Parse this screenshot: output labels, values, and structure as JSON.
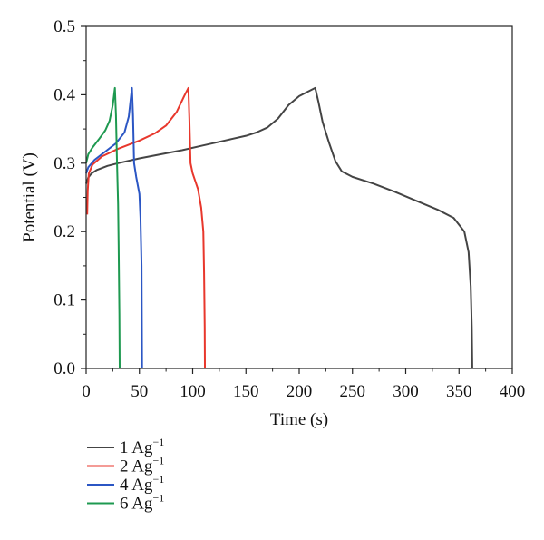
{
  "chart_data": {
    "type": "line",
    "xlabel": "Time (s)",
    "ylabel": "Potential (V)",
    "xlim": [
      0,
      400
    ],
    "ylim": [
      0,
      0.5
    ],
    "xticks": [
      0,
      50,
      100,
      150,
      200,
      250,
      300,
      350,
      400
    ],
    "yticks": [
      0.0,
      0.1,
      0.2,
      0.3,
      0.4,
      0.5
    ],
    "xtick_labels": [
      "0",
      "50",
      "100",
      "150",
      "200",
      "250",
      "300",
      "350",
      "400"
    ],
    "ytick_labels": [
      "0.0",
      "0.1",
      "0.2",
      "0.3",
      "0.4",
      "0.5"
    ],
    "legend_position": "below-left",
    "series": [
      {
        "name": "1 Ag",
        "name_superscript": "−1",
        "color": "#444444",
        "points": [
          [
            0,
            0.27
          ],
          [
            2,
            0.279
          ],
          [
            5,
            0.285
          ],
          [
            10,
            0.29
          ],
          [
            20,
            0.296
          ],
          [
            30,
            0.3
          ],
          [
            50,
            0.307
          ],
          [
            70,
            0.313
          ],
          [
            90,
            0.319
          ],
          [
            110,
            0.326
          ],
          [
            130,
            0.333
          ],
          [
            150,
            0.34
          ],
          [
            160,
            0.345
          ],
          [
            170,
            0.352
          ],
          [
            180,
            0.365
          ],
          [
            190,
            0.385
          ],
          [
            200,
            0.398
          ],
          [
            210,
            0.406
          ],
          [
            215,
            0.41
          ],
          [
            218,
            0.39
          ],
          [
            222,
            0.36
          ],
          [
            228,
            0.33
          ],
          [
            234,
            0.303
          ],
          [
            240,
            0.288
          ],
          [
            250,
            0.28
          ],
          [
            270,
            0.27
          ],
          [
            290,
            0.258
          ],
          [
            310,
            0.245
          ],
          [
            330,
            0.232
          ],
          [
            345,
            0.22
          ],
          [
            355,
            0.2
          ],
          [
            359,
            0.17
          ],
          [
            361,
            0.12
          ],
          [
            362,
            0.06
          ],
          [
            362.5,
            0.0
          ]
        ]
      },
      {
        "name": "2 Ag",
        "name_superscript": "−1",
        "color": "#e8372c",
        "points": [
          [
            1,
            0.225
          ],
          [
            1.5,
            0.26
          ],
          [
            2.5,
            0.285
          ],
          [
            6,
            0.298
          ],
          [
            15,
            0.31
          ],
          [
            30,
            0.321
          ],
          [
            50,
            0.333
          ],
          [
            65,
            0.344
          ],
          [
            75,
            0.355
          ],
          [
            85,
            0.375
          ],
          [
            92,
            0.398
          ],
          [
            96,
            0.41
          ],
          [
            97,
            0.36
          ],
          [
            98,
            0.3
          ],
          [
            100,
            0.285
          ],
          [
            105,
            0.262
          ],
          [
            108,
            0.235
          ],
          [
            110,
            0.2
          ],
          [
            110.7,
            0.14
          ],
          [
            111.3,
            0.06
          ],
          [
            111.5,
            0.0
          ]
        ]
      },
      {
        "name": "4 Ag",
        "name_superscript": "−1",
        "color": "#2b56c4",
        "points": [
          [
            0,
            0.285
          ],
          [
            2,
            0.294
          ],
          [
            8,
            0.305
          ],
          [
            18,
            0.317
          ],
          [
            28,
            0.329
          ],
          [
            36,
            0.345
          ],
          [
            40,
            0.368
          ],
          [
            43,
            0.41
          ],
          [
            44,
            0.37
          ],
          [
            45,
            0.3
          ],
          [
            47,
            0.28
          ],
          [
            50,
            0.255
          ],
          [
            51,
            0.22
          ],
          [
            52,
            0.15
          ],
          [
            52.5,
            0.0
          ]
        ]
      },
      {
        "name": "6 Ag",
        "name_superscript": "−1",
        "color": "#1e9950",
        "points": [
          [
            0,
            0.3
          ],
          [
            2,
            0.313
          ],
          [
            6,
            0.323
          ],
          [
            12,
            0.335
          ],
          [
            18,
            0.348
          ],
          [
            22,
            0.362
          ],
          [
            25,
            0.385
          ],
          [
            27,
            0.41
          ],
          [
            28,
            0.37
          ],
          [
            29,
            0.3
          ],
          [
            30,
            0.24
          ],
          [
            30.5,
            0.18
          ],
          [
            31.2,
            0.08
          ],
          [
            31.5,
            0.0
          ]
        ]
      }
    ]
  }
}
